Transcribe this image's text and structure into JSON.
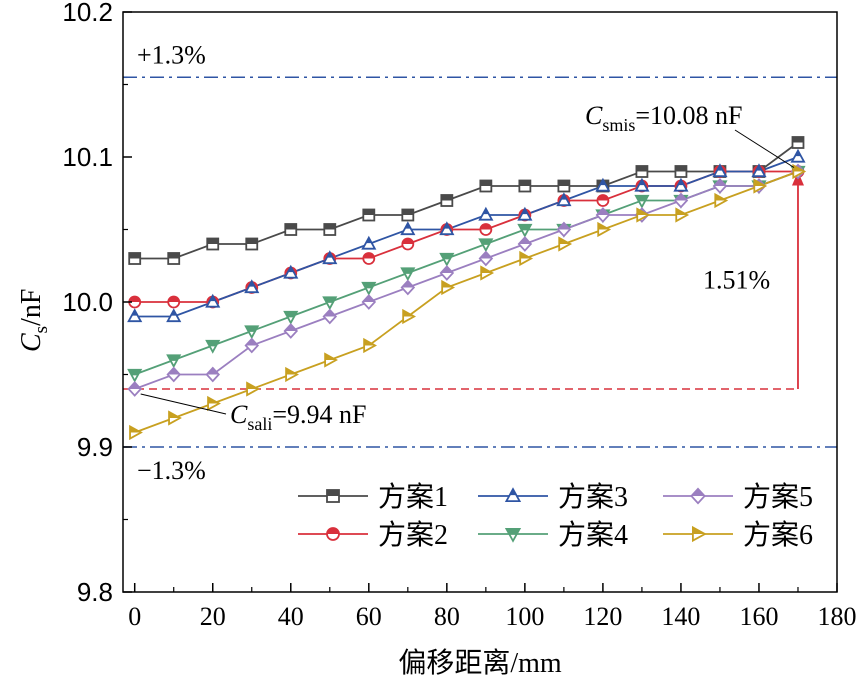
{
  "chart_data": {
    "type": "line",
    "xlabel": "偏移距离/mm",
    "ylabel_main": "C",
    "ylabel_sub": "s",
    "ylabel_unit": "/nF",
    "xlim": [
      -3,
      180
    ],
    "ylim": [
      9.8,
      10.2
    ],
    "xticks": [
      0,
      20,
      40,
      60,
      80,
      100,
      120,
      140,
      160,
      180
    ],
    "yticks": [
      9.8,
      9.9,
      10.0,
      10.1,
      10.2
    ],
    "ytick_labels": [
      "9.8",
      "9.9",
      "10.0",
      "10.1",
      "10.2"
    ],
    "grid": false,
    "legend_position": "lower-right",
    "x": [
      0,
      10,
      20,
      30,
      40,
      50,
      60,
      70,
      80,
      90,
      100,
      110,
      120,
      130,
      140,
      150,
      160,
      170
    ],
    "series": [
      {
        "name": "方案1",
        "color": "#4a4a4a",
        "marker": "square",
        "filled": false,
        "values": [
          10.03,
          10.03,
          10.04,
          10.04,
          10.05,
          10.05,
          10.06,
          10.06,
          10.07,
          10.08,
          10.08,
          10.08,
          10.08,
          10.09,
          10.09,
          10.09,
          10.09,
          10.11
        ]
      },
      {
        "name": "方案2",
        "color": "#d9303c",
        "marker": "circle",
        "filled": false,
        "values": [
          10.0,
          10.0,
          10.0,
          10.01,
          10.02,
          10.03,
          10.03,
          10.04,
          10.05,
          10.05,
          10.06,
          10.07,
          10.07,
          10.08,
          10.08,
          10.09,
          10.09,
          10.09
        ]
      },
      {
        "name": "方案3",
        "color": "#2f55a4",
        "marker": "triangle-up",
        "filled": false,
        "values": [
          9.99,
          9.99,
          10.0,
          10.01,
          10.02,
          10.03,
          10.04,
          10.05,
          10.05,
          10.06,
          10.06,
          10.07,
          10.08,
          10.08,
          10.08,
          10.09,
          10.09,
          10.1
        ]
      },
      {
        "name": "方案4",
        "color": "#54a077",
        "marker": "triangle-down",
        "filled": false,
        "values": [
          9.95,
          9.96,
          9.97,
          9.98,
          9.99,
          10.0,
          10.01,
          10.02,
          10.03,
          10.04,
          10.05,
          10.05,
          10.06,
          10.07,
          10.07,
          10.08,
          10.08,
          10.09
        ]
      },
      {
        "name": "方案5",
        "color": "#9b7fc0",
        "marker": "diamond",
        "filled": false,
        "values": [
          9.94,
          9.95,
          9.95,
          9.97,
          9.98,
          9.99,
          10.0,
          10.01,
          10.02,
          10.03,
          10.04,
          10.05,
          10.06,
          10.06,
          10.07,
          10.08,
          10.08,
          10.09
        ]
      },
      {
        "name": "方案6",
        "color": "#c8a020",
        "marker": "triangle-right",
        "filled": false,
        "values": [
          9.91,
          9.92,
          9.93,
          9.94,
          9.95,
          9.96,
          9.97,
          9.99,
          10.01,
          10.02,
          10.03,
          10.04,
          10.05,
          10.06,
          10.06,
          10.07,
          10.08,
          10.09
        ]
      }
    ],
    "reference_lines": [
      {
        "y": 10.155,
        "label": "+1.3%",
        "color": "#2f55a4",
        "style": "dash-dot"
      },
      {
        "y": 9.9,
        "label": "−1.3%",
        "color": "#2f55a4",
        "style": "dash-dot"
      }
    ],
    "annotations": {
      "smis": {
        "main": "C",
        "sub": "smis",
        "rest": "=10.08 nF"
      },
      "sali": {
        "main": "C",
        "sub": "sali",
        "rest": "=9.94 nF"
      },
      "delta": {
        "text": "1.51%",
        "x": 170,
        "y_from": 9.94,
        "y_to": 10.09,
        "color": "#d9303c"
      },
      "min_line": {
        "y": 9.94,
        "x_to": 170,
        "color": "#d9303c",
        "style": "dashed"
      }
    }
  }
}
